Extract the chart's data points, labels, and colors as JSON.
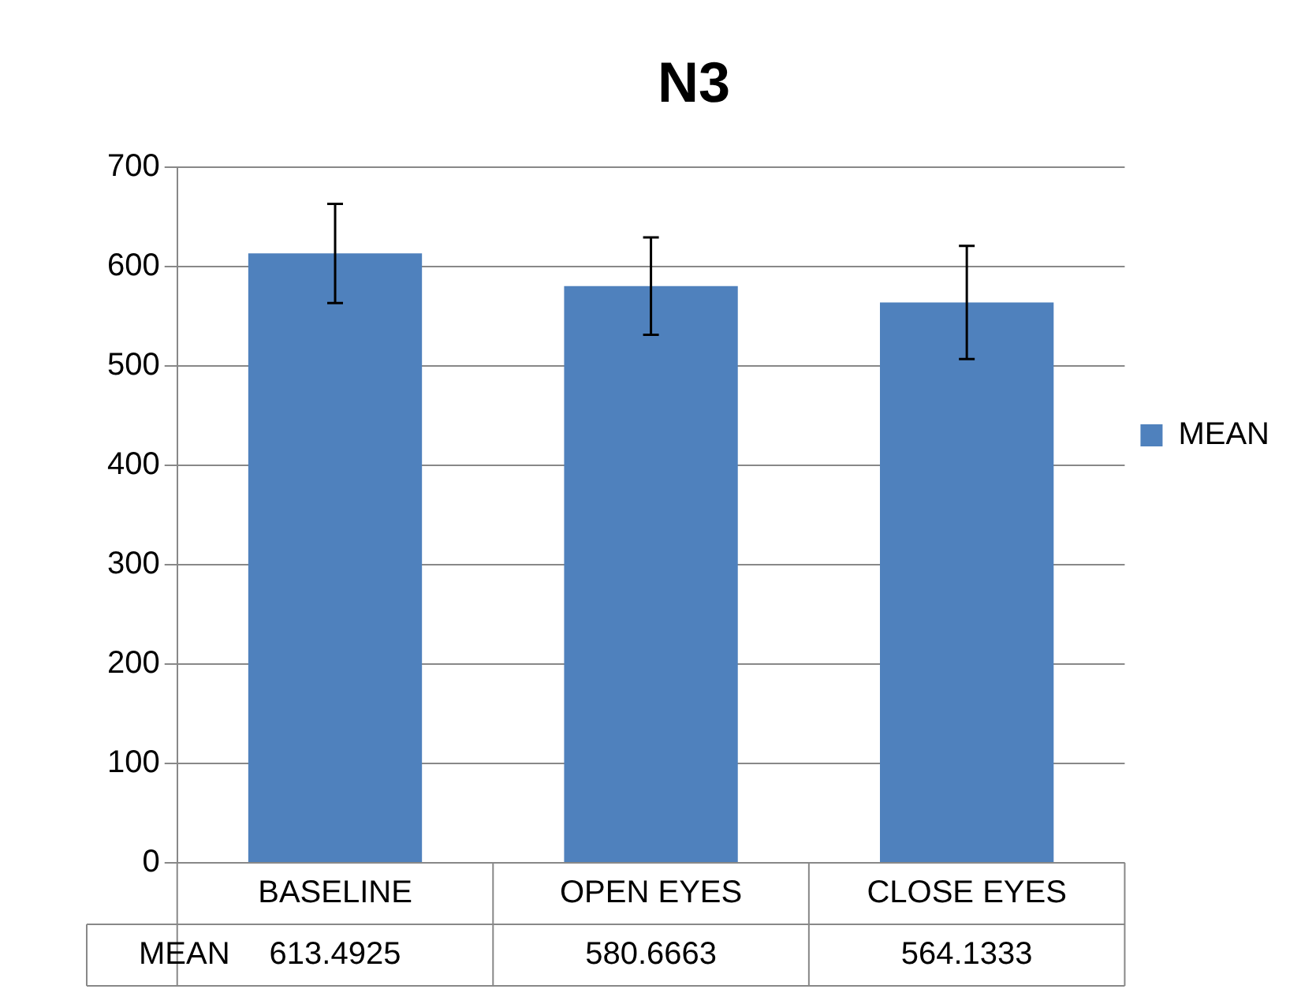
{
  "chart_data": {
    "type": "bar",
    "title": "N3",
    "categories": [
      "BASELINE",
      "OPEN EYES",
      "CLOSE EYES"
    ],
    "series": [
      {
        "name": "MEAN",
        "color": "#4f81bd",
        "values": [
          613.4925,
          580.6663,
          564.1333
        ],
        "errors": [
          50,
          49,
          57
        ]
      }
    ],
    "ylim": [
      0,
      700
    ],
    "yticks": [
      0,
      100,
      200,
      300,
      400,
      500,
      600,
      700
    ],
    "grid": "y",
    "legend": "right",
    "data_labels": true
  }
}
